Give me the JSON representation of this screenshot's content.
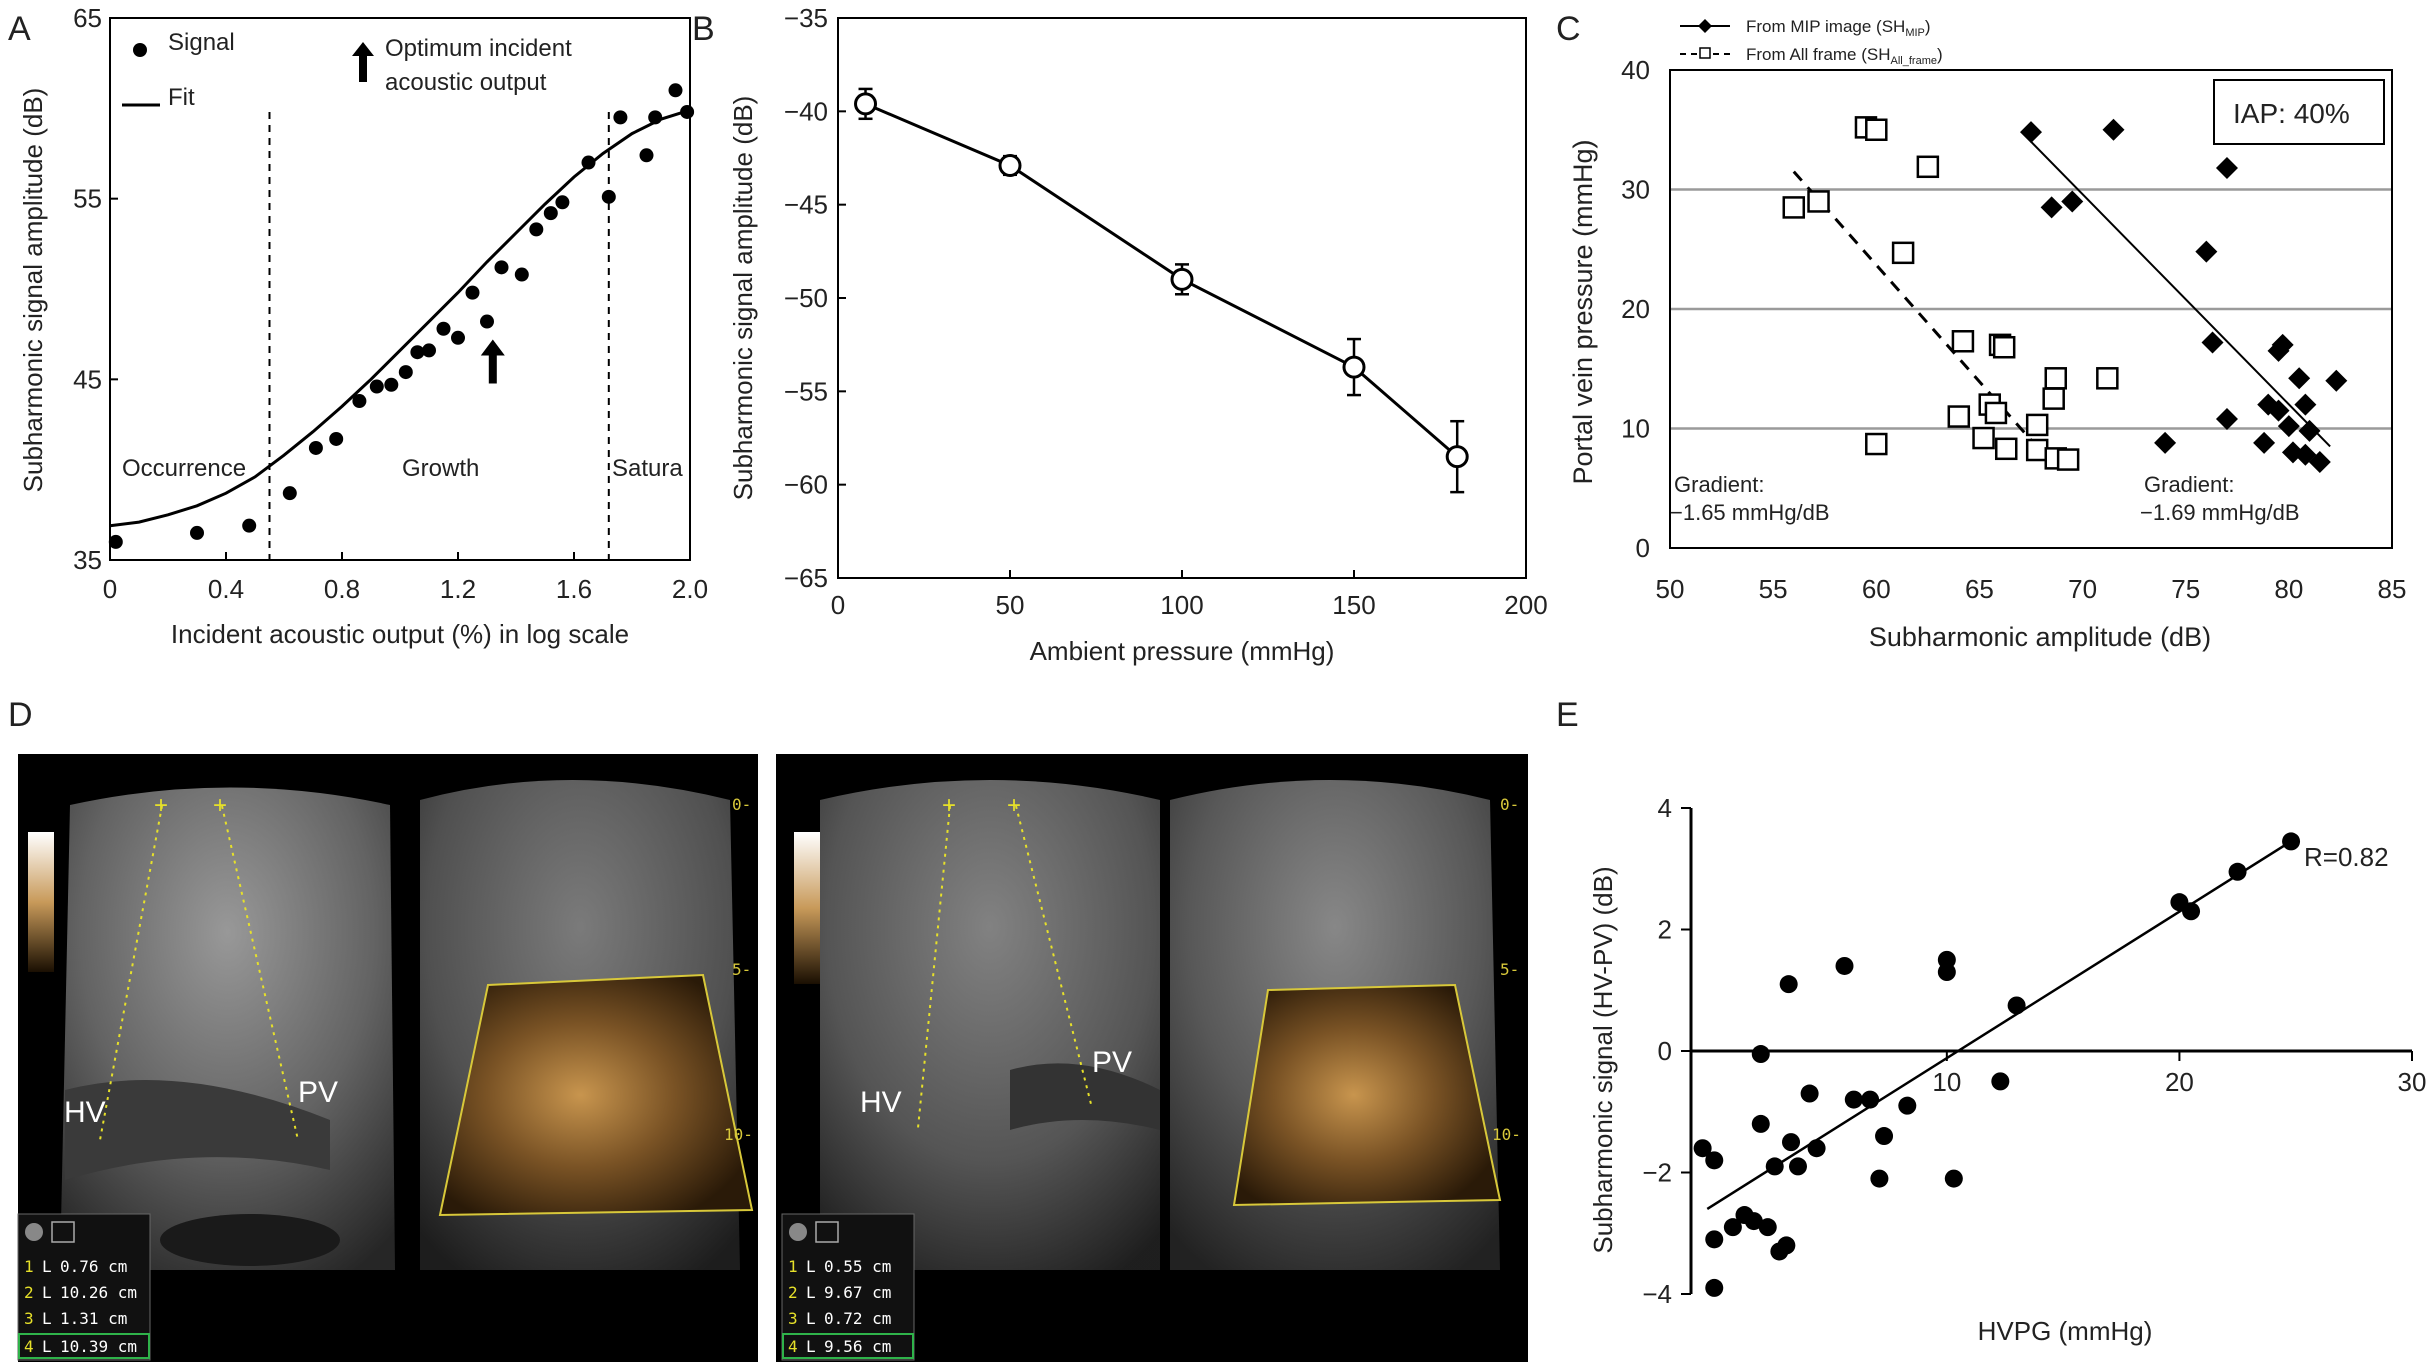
{
  "panels": [
    {
      "label": "A",
      "type": "scatter",
      "xlabel": "Incident acoustic output (%) in log scale",
      "ylabel": "Subharmonic signal amplitude (dB)",
      "xlim": [
        0,
        2.0
      ],
      "ylim": [
        35,
        65
      ],
      "xticks": [
        "0",
        "0.4",
        "0.8",
        "1.2",
        "1.6",
        "2.0"
      ],
      "yticks": [
        "35",
        "45",
        "55",
        "65"
      ],
      "legend": [
        {
          "marker": "dot",
          "label": "Signal"
        },
        {
          "marker": "line",
          "label": "Fit"
        }
      ],
      "optimum_label_1": "Optimum incident",
      "optimum_label_2": "acoustic output",
      "optimum_x": 1.32,
      "regions": [
        {
          "label": "Occurrence"
        },
        {
          "label": "Growth"
        },
        {
          "label": "Satura"
        }
      ],
      "region_boundaries": [
        0.55,
        1.72
      ],
      "series": [
        {
          "name": "Signal",
          "points": [
            [
              0.02,
              36.0
            ],
            [
              0.3,
              36.5
            ],
            [
              0.48,
              36.9
            ],
            [
              0.62,
              38.7
            ],
            [
              0.71,
              41.2
            ],
            [
              0.78,
              41.7
            ],
            [
              0.86,
              43.8
            ],
            [
              0.92,
              44.6
            ],
            [
              0.97,
              44.7
            ],
            [
              1.02,
              45.4
            ],
            [
              1.06,
              46.5
            ],
            [
              1.1,
              46.6
            ],
            [
              1.15,
              47.8
            ],
            [
              1.2,
              47.3
            ],
            [
              1.25,
              49.8
            ],
            [
              1.3,
              48.2
            ],
            [
              1.35,
              51.2
            ],
            [
              1.42,
              50.8
            ],
            [
              1.47,
              53.3
            ],
            [
              1.52,
              54.2
            ],
            [
              1.56,
              54.8
            ],
            [
              1.65,
              57.0
            ],
            [
              1.72,
              55.1
            ],
            [
              1.76,
              59.5
            ],
            [
              1.85,
              57.4
            ],
            [
              1.88,
              59.5
            ],
            [
              1.95,
              61.0
            ],
            [
              1.99,
              59.8
            ]
          ]
        },
        {
          "name": "Fit",
          "points": [
            [
              0,
              36.9
            ],
            [
              0.1,
              37.1
            ],
            [
              0.2,
              37.5
            ],
            [
              0.3,
              38.0
            ],
            [
              0.4,
              38.7
            ],
            [
              0.5,
              39.6
            ],
            [
              0.6,
              40.8
            ],
            [
              0.7,
              42.1
            ],
            [
              0.8,
              43.5
            ],
            [
              0.9,
              45.0
            ],
            [
              1.0,
              46.6
            ],
            [
              1.1,
              48.2
            ],
            [
              1.2,
              49.8
            ],
            [
              1.3,
              51.5
            ],
            [
              1.4,
              53.1
            ],
            [
              1.5,
              54.7
            ],
            [
              1.6,
              56.2
            ],
            [
              1.7,
              57.5
            ],
            [
              1.8,
              58.6
            ],
            [
              1.9,
              59.4
            ],
            [
              2.0,
              59.9
            ]
          ]
        }
      ]
    },
    {
      "label": "B",
      "type": "line",
      "xlabel": "Ambient pressure (mmHg)",
      "ylabel": "Subharmonic signal amplitude (dB)",
      "xlim": [
        0,
        200
      ],
      "ylim": [
        -65,
        -35
      ],
      "xticks": [
        "0",
        "50",
        "100",
        "150",
        "200"
      ],
      "yticks": [
        "−35",
        "−40",
        "−45",
        "−50",
        "−55",
        "−60",
        "−65"
      ],
      "x": [
        8,
        50,
        100,
        150,
        180
      ],
      "values": [
        -39.6,
        -42.9,
        -49.0,
        -53.7,
        -58.5
      ],
      "errors": [
        0.8,
        0.5,
        0.8,
        1.5,
        1.9
      ]
    },
    {
      "label": "C",
      "type": "scatter",
      "xlabel": "Subharmonic amplitude (dB)",
      "ylabel": "Portal vein pressure (mmHg)",
      "xlim": [
        50,
        85
      ],
      "ylim": [
        0,
        40
      ],
      "xticks": [
        "50",
        "55",
        "60",
        "65",
        "70",
        "75",
        "80",
        "85"
      ],
      "yticks": [
        "0",
        "10",
        "20",
        "30",
        "40"
      ],
      "grid": true,
      "legend": [
        {
          "line": "solid",
          "marker": "diamond",
          "label": "From MIP image (SH",
          "sub": "MIP",
          "close": ")"
        },
        {
          "line": "dashed",
          "marker": "square",
          "label": "From All frame (SH",
          "sub": "All_frame",
          "close": ")"
        }
      ],
      "box_label": "IAP: 40%",
      "gradient_title": "Gradient:",
      "gradient_left": "−1.65 mmHg/dB",
      "gradient_right": "−1.69 mmHg/dB",
      "series": [
        {
          "name": "From MIP image",
          "marker": "diamond",
          "points": [
            [
              67.5,
              34.8
            ],
            [
              71.5,
              35.0
            ],
            [
              68.5,
              28.5
            ],
            [
              69.5,
              29.0
            ],
            [
              77.0,
              31.8
            ],
            [
              76.0,
              24.8
            ],
            [
              76.3,
              17.2
            ],
            [
              79.5,
              16.5
            ],
            [
              79.7,
              17.0
            ],
            [
              80.5,
              14.2
            ],
            [
              82.3,
              14.0
            ],
            [
              79.0,
              12.0
            ],
            [
              79.5,
              11.5
            ],
            [
              80.8,
              12.0
            ],
            [
              77.0,
              10.8
            ],
            [
              80.0,
              10.2
            ],
            [
              81.0,
              9.8
            ],
            [
              74.0,
              8.8
            ],
            [
              78.8,
              8.8
            ],
            [
              80.2,
              8.0
            ],
            [
              80.8,
              7.8
            ],
            [
              81.5,
              7.2
            ]
          ],
          "fit": [
            [
              67.5,
              34.0
            ],
            [
              82.0,
              8.5
            ]
          ]
        },
        {
          "name": "From All frame",
          "marker": "square",
          "points": [
            [
              59.5,
              35.2
            ],
            [
              60.0,
              35.0
            ],
            [
              62.5,
              31.9
            ],
            [
              56.0,
              28.5
            ],
            [
              57.2,
              29.0
            ],
            [
              61.3,
              24.7
            ],
            [
              64.2,
              17.3
            ],
            [
              66.0,
              17.0
            ],
            [
              66.2,
              16.8
            ],
            [
              68.7,
              14.2
            ],
            [
              71.2,
              14.2
            ],
            [
              68.6,
              12.5
            ],
            [
              65.5,
              12.0
            ],
            [
              65.8,
              11.3
            ],
            [
              64.0,
              11.0
            ],
            [
              67.8,
              10.3
            ],
            [
              60.0,
              8.7
            ],
            [
              65.2,
              9.2
            ],
            [
              66.3,
              8.3
            ],
            [
              67.8,
              8.2
            ],
            [
              68.7,
              7.5
            ],
            [
              69.3,
              7.4
            ]
          ],
          "fit": [
            [
              56.0,
              31.5
            ],
            [
              68.8,
              6.5
            ]
          ]
        }
      ]
    },
    {
      "label": "D",
      "type": "image",
      "images": [
        {
          "hv_label": "HV",
          "pv_label": "PV",
          "measurements": [
            {
              "n": "1",
              "L": "L",
              "value": "0.76 cm"
            },
            {
              "n": "2",
              "L": "L",
              "value": "10.26 cm"
            },
            {
              "n": "3",
              "L": "L",
              "value": "1.31 cm"
            },
            {
              "n": "4",
              "L": "L",
              "value": "10.39 cm"
            }
          ],
          "depth_labels": [
            "0-",
            "5-",
            "10-"
          ]
        },
        {
          "hv_label": "HV",
          "pv_label": "PV",
          "measurements": [
            {
              "n": "1",
              "L": "L",
              "value": "0.55 cm"
            },
            {
              "n": "2",
              "L": "L",
              "value": "9.67 cm"
            },
            {
              "n": "3",
              "L": "L",
              "value": "0.72 cm"
            },
            {
              "n": "4",
              "L": "L",
              "value": "9.56 cm"
            }
          ],
          "depth_labels": [
            "0-",
            "5-",
            "10-"
          ]
        }
      ]
    },
    {
      "label": "E",
      "type": "scatter",
      "xlabel": "HVPG (mmHg)",
      "ylabel": "Subharmonic signal (HV-PV) (dB)",
      "xlim": [
        -1,
        30
      ],
      "ylim": [
        -4,
        4
      ],
      "xticks": [
        "10",
        "20",
        "30"
      ],
      "yticks": [
        "4",
        "2",
        "0",
        "−2",
        "−4"
      ],
      "annotation": "R=0.82",
      "series": [
        {
          "name": "",
          "points": [
            [
              -0.5,
              -1.6
            ],
            [
              0,
              -1.8
            ],
            [
              0,
              -3.1
            ],
            [
              0,
              -3.9
            ],
            [
              0.8,
              -2.9
            ],
            [
              1.3,
              -2.7
            ],
            [
              1.7,
              -2.8
            ],
            [
              2,
              -1.2
            ],
            [
              2,
              -0.05
            ],
            [
              2.3,
              -2.9
            ],
            [
              2.6,
              -1.9
            ],
            [
              2.8,
              -3.3
            ],
            [
              3.1,
              -3.2
            ],
            [
              3.3,
              -1.5
            ],
            [
              3.6,
              -1.9
            ],
            [
              3.2,
              1.1
            ],
            [
              4.1,
              -0.7
            ],
            [
              4.4,
              -1.6
            ],
            [
              5.6,
              1.4
            ],
            [
              6,
              -0.8
            ],
            [
              6.7,
              -0.8
            ],
            [
              7.3,
              -1.4
            ],
            [
              7.1,
              -2.1
            ],
            [
              8.3,
              -0.9
            ],
            [
              10,
              1.5
            ],
            [
              10,
              1.3
            ],
            [
              10.3,
              -2.1
            ],
            [
              12.3,
              -0.5
            ],
            [
              13,
              0.75
            ],
            [
              20,
              2.45
            ],
            [
              20.5,
              2.3
            ],
            [
              22.5,
              2.95
            ],
            [
              24.8,
              3.45
            ]
          ],
          "fit": [
            [
              -0.3,
              -2.6
            ],
            [
              25,
              3.5
            ]
          ]
        }
      ]
    }
  ]
}
